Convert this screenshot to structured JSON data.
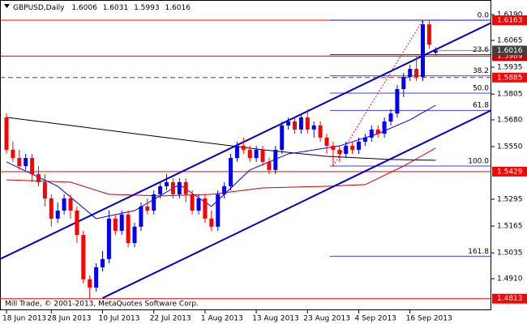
{
  "chart_data": {
    "type": "candlestick",
    "title": "GBPUSD,Daily",
    "footer": "Mill Trade, © 2001-2013, MetaQuotes Software Corp.",
    "bull_color": "#0000ff",
    "bear_color": "#ff0000",
    "ylim": [
      1.4757,
      1.6261
    ],
    "yticks": [
      {
        "value": 1.619,
        "label": "1.6190"
      },
      1.6065,
      1.5935,
      1.5805,
      {
        "value": 1.568,
        "label": "1.5680"
      },
      {
        "value": 1.555,
        "label": "1.5550"
      },
      1.5295,
      1.5165,
      1.5035,
      {
        "value": 1.491,
        "label": "1.4910"
      }
    ],
    "categories": [
      "18 Jun 2013",
      null,
      null,
      null,
      null,
      null,
      null,
      "28 Jun 2013",
      null,
      null,
      null,
      null,
      null,
      null,
      null,
      "10 Jul 2013",
      null,
      null,
      null,
      null,
      null,
      null,
      null,
      "22 Jul 2013",
      null,
      null,
      null,
      null,
      null,
      null,
      null,
      "1 Aug 2013",
      null,
      null,
      null,
      null,
      null,
      null,
      null,
      "13 Aug 2013",
      null,
      null,
      null,
      null,
      null,
      null,
      null,
      "23 Aug 2013",
      null,
      null,
      null,
      null,
      null,
      null,
      null,
      "4 Sep 2013",
      null,
      null,
      null,
      null,
      null,
      null,
      null,
      "16 Sep 2013",
      null,
      null,
      null,
      null
    ],
    "open": [
      1.5692,
      1.5535,
      1.5495,
      1.5456,
      1.5495,
      1.5417,
      1.5378,
      1.5299,
      1.5201,
      1.524,
      1.5299,
      1.524,
      1.5122,
      1.4907,
      1.4867,
      1.4965,
      1.5005,
      1.5201,
      1.5142,
      1.5221,
      1.5083,
      1.5162,
      1.526,
      1.524,
      1.5319,
      1.5358,
      1.5378,
      1.5319,
      1.5378,
      1.5319,
      1.524,
      1.5299,
      1.5201,
      1.5162,
      1.5319,
      1.5358,
      1.5495,
      1.5554,
      1.5535,
      1.5495,
      1.5535,
      1.5476,
      1.5437,
      1.5535,
      1.5653,
      1.5672,
      1.5633,
      1.5692,
      1.5633,
      1.5653,
      1.5594,
      1.5554,
      1.5535,
      1.5515,
      1.5554,
      1.5535,
      1.5574,
      1.5594,
      1.5633,
      1.5613,
      1.5672,
      1.5711,
      1.5829,
      1.5888,
      1.5927,
      1.5888,
      1.6143,
      1.6006
    ],
    "high": [
      1.5711,
      1.5574,
      1.5535,
      1.5515,
      1.5515,
      1.5456,
      1.5417,
      1.5319,
      1.528,
      1.5319,
      1.5319,
      1.526,
      1.5142,
      1.4926,
      1.4985,
      1.5044,
      1.524,
      1.5221,
      1.524,
      1.524,
      1.5181,
      1.528,
      1.5299,
      1.5338,
      1.5378,
      1.5417,
      1.5397,
      1.5397,
      1.5397,
      1.5338,
      1.5319,
      1.5319,
      1.524,
      1.5338,
      1.5378,
      1.5515,
      1.5574,
      1.5594,
      1.5554,
      1.5554,
      1.5554,
      1.5495,
      1.5554,
      1.5672,
      1.5692,
      1.5692,
      1.5711,
      1.5731,
      1.5672,
      1.5672,
      1.5613,
      1.5574,
      1.5554,
      1.5574,
      1.5574,
      1.5594,
      1.5613,
      1.5653,
      1.5653,
      1.5692,
      1.5731,
      1.5849,
      1.5908,
      1.5947,
      1.5986,
      1.6163,
      1.6163,
      1.6031
    ],
    "low": [
      1.5515,
      1.5476,
      1.5437,
      1.5437,
      1.5378,
      1.5358,
      1.526,
      1.5162,
      1.5181,
      1.5221,
      1.5201,
      1.5083,
      1.4887,
      1.4813,
      1.4848,
      1.4946,
      1.4985,
      1.5122,
      1.5122,
      1.5063,
      1.5063,
      1.5142,
      1.5221,
      1.5221,
      1.5299,
      1.5338,
      1.5299,
      1.5299,
      1.528,
      1.5221,
      1.5221,
      1.5181,
      1.5142,
      1.5142,
      1.5299,
      1.5338,
      1.5476,
      1.5515,
      1.5476,
      1.5476,
      1.5456,
      1.5417,
      1.5417,
      1.5515,
      1.5633,
      1.5613,
      1.5613,
      1.5613,
      1.5594,
      1.5574,
      1.5515,
      1.5456,
      1.5476,
      1.5495,
      1.5515,
      1.5515,
      1.5554,
      1.5574,
      1.5594,
      1.5594,
      1.5653,
      1.5692,
      1.579,
      1.5868,
      1.5868,
      1.5868,
      1.6025,
      1.5993
    ],
    "close": [
      1.5535,
      1.5495,
      1.5456,
      1.5495,
      1.5417,
      1.5378,
      1.5299,
      1.5201,
      1.524,
      1.5299,
      1.524,
      1.5122,
      1.4907,
      1.4867,
      1.4965,
      1.5005,
      1.5201,
      1.5142,
      1.5221,
      1.5083,
      1.5162,
      1.526,
      1.524,
      1.5319,
      1.5358,
      1.5378,
      1.5319,
      1.5378,
      1.5319,
      1.524,
      1.5299,
      1.5201,
      1.5162,
      1.5319,
      1.5358,
      1.5495,
      1.5554,
      1.5535,
      1.5495,
      1.5535,
      1.5476,
      1.5437,
      1.5535,
      1.5653,
      1.5672,
      1.5633,
      1.5692,
      1.5633,
      1.5653,
      1.5594,
      1.5554,
      1.5535,
      1.5515,
      1.5554,
      1.5535,
      1.5574,
      1.5594,
      1.5633,
      1.5613,
      1.5672,
      1.5711,
      1.5829,
      1.5888,
      1.5927,
      1.5888,
      1.6143,
      1.6045,
      1.6016
    ],
    "indicators": [
      {
        "color": "#000000",
        "x": [
          0,
          10,
          20,
          30,
          40,
          50,
          60,
          67
        ],
        "values": [
          1.5692,
          1.5653,
          1.5613,
          1.5574,
          1.5535,
          1.5503,
          1.5488,
          1.5484
        ]
      },
      {
        "color": "#0000ff",
        "x": [
          0,
          8,
          14,
          20,
          27,
          32,
          38,
          44,
          52,
          58,
          63,
          67
        ],
        "values": [
          1.5476,
          1.5358,
          1.5201,
          1.524,
          1.5366,
          1.526,
          1.5437,
          1.5515,
          1.5554,
          1.5613,
          1.568,
          1.5751
        ]
      },
      {
        "color": "#cc0000",
        "x": [
          0,
          10,
          16,
          24,
          32,
          40,
          50,
          56,
          62,
          67
        ],
        "values": [
          1.5389,
          1.5378,
          1.5319,
          1.5311,
          1.5319,
          1.535,
          1.5358,
          1.5366,
          1.5456,
          1.5543
        ]
      }
    ],
    "trendlines": [
      {
        "color": "#0000cc",
        "x": [
          -1,
          76
        ],
        "values": [
          1.5005,
          1.6155
        ]
      },
      {
        "color": "#0000cc",
        "x": [
          15,
          76
        ],
        "values": [
          1.4816,
          1.5731
        ]
      }
    ],
    "levels": [
      {
        "value": 1.6163,
        "color": "#ff0000",
        "dashed": false
      },
      {
        "value": 1.5989,
        "color": "#cc0000",
        "dashed": false
      },
      {
        "value": 1.5885,
        "color": "#ff0000",
        "dashed": true
      },
      {
        "value": 1.5429,
        "color": "#ff0000",
        "dashed": false
      },
      {
        "value": 1.4813,
        "color": "#ff0000",
        "dashed": false
      }
    ],
    "fibo": {
      "high": 1.6163,
      "low": 1.5456,
      "bars": [
        51,
        65
      ],
      "color": "#0000cc",
      "levels": [
        {
          "value": 0,
          "label": "0.0"
        },
        23.6,
        38.2,
        {
          "value": 50,
          "label": "50.0"
        },
        61.8,
        {
          "value": 100,
          "label": "100.0"
        },
        161.8
      ]
    }
  }
}
